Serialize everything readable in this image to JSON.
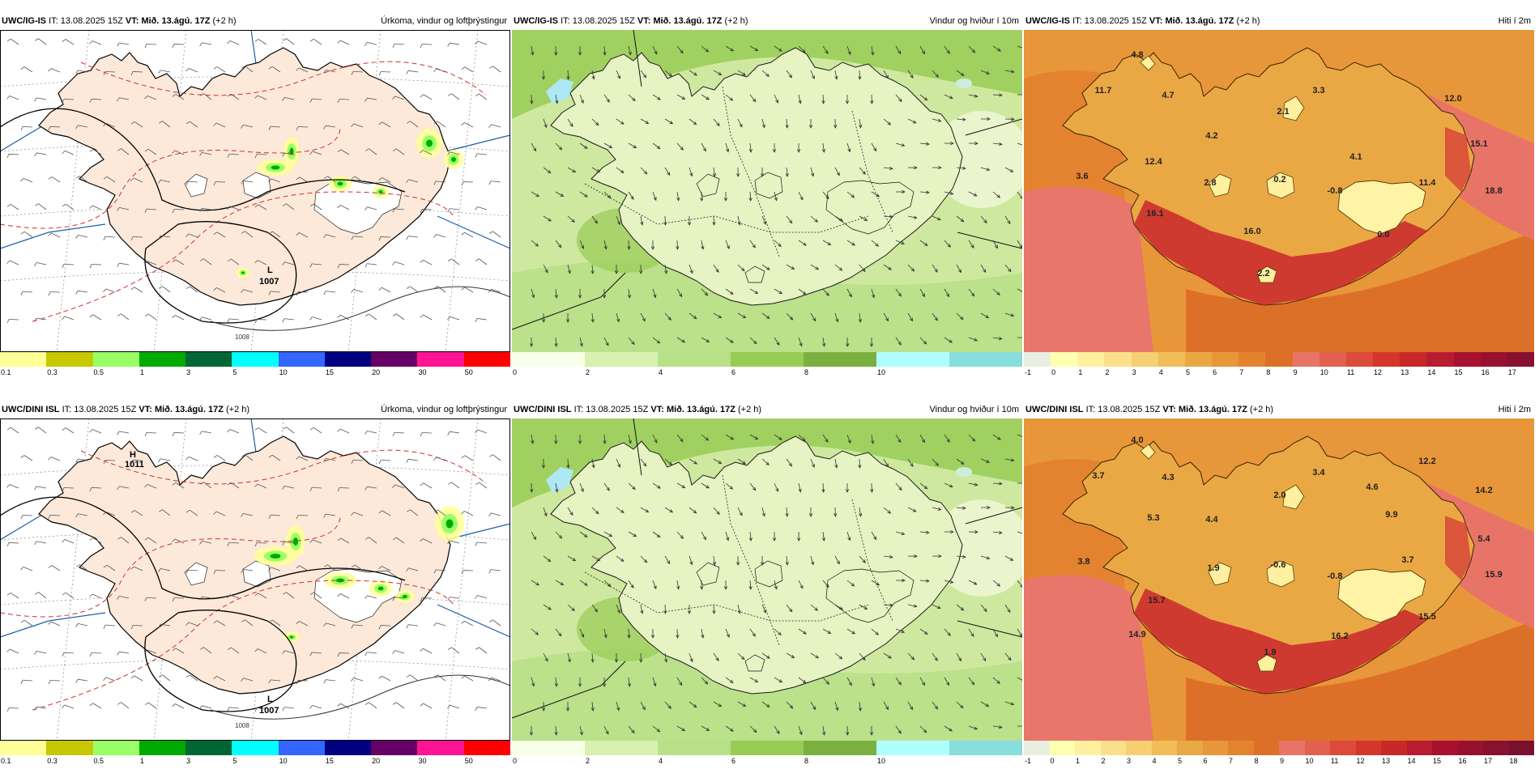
{
  "rows": [
    {
      "panels": [
        {
          "type": "precip",
          "model": "UWC/IG-IS",
          "it_label": "IT:",
          "it": "13.08.2025 15Z",
          "vt_label": "VT:",
          "vt": "Mið. 13.ágú. 17Z",
          "lead": "(+2 h)",
          "title": "Úrkoma, vindur og loftþrýstingur",
          "pressure_low": "L",
          "pressure_low_value": "1007",
          "isobar_label": "1008",
          "colorbar": {
            "colors": [
              "#ffff99",
              "#c8c800",
              "#99ff66",
              "#00aa00",
              "#006633",
              "#00ffff",
              "#3366ff",
              "#000080",
              "#660066",
              "#ff1493",
              "#ff0000"
            ],
            "ticks": [
              "0.1",
              "0.3",
              "0.5",
              "1",
              "3",
              "5",
              "10",
              "15",
              "20",
              "30",
              "50"
            ]
          }
        },
        {
          "type": "wind",
          "model": "UWC/IG-IS",
          "it_label": "IT:",
          "it": "13.08.2025 15Z",
          "vt_label": "VT:",
          "vt": "Mið. 13.ágú. 17Z",
          "lead": "(+2 h)",
          "title": "Vindur og hviður í 10m",
          "colorbar": {
            "colors": [
              "#f8ffe8",
              "#d8f0b0",
              "#b8e088",
              "#98cc55",
              "#7ab040",
              "#b0ffff",
              "#88dddd"
            ],
            "ticks": [
              "0",
              "2",
              "4",
              "6",
              "8",
              "10"
            ]
          }
        },
        {
          "type": "temp",
          "model": "UWC/IG-IS",
          "it_label": "IT:",
          "it": "13.08.2025 15Z",
          "vt_label": "VT:",
          "vt": "Mið. 13.ágú. 17Z",
          "lead": "(+2 h)",
          "title": "Hiti í 2m",
          "labels": [
            {
              "t": "4.8",
              "x": 140,
              "y": 34
            },
            {
              "t": "11.7",
              "x": 98,
              "y": 78
            },
            {
              "t": "4.7",
              "x": 178,
              "y": 84
            },
            {
              "t": "3.3",
              "x": 364,
              "y": 78
            },
            {
              "t": "2.1",
              "x": 320,
              "y": 104
            },
            {
              "t": "12.0",
              "x": 530,
              "y": 88
            },
            {
              "t": "4.2",
              "x": 232,
              "y": 134
            },
            {
              "t": "15.1",
              "x": 562,
              "y": 144
            },
            {
              "t": "12.4",
              "x": 160,
              "y": 166
            },
            {
              "t": "4.1",
              "x": 410,
              "y": 160
            },
            {
              "t": "3.6",
              "x": 72,
              "y": 184
            },
            {
              "t": "2.8",
              "x": 230,
              "y": 192
            },
            {
              "t": "0.2",
              "x": 316,
              "y": 188
            },
            {
              "t": "11.4",
              "x": 498,
              "y": 192
            },
            {
              "t": "-0.8",
              "x": 384,
              "y": 202
            },
            {
              "t": "18.8",
              "x": 580,
              "y": 202
            },
            {
              "t": "16.1",
              "x": 162,
              "y": 230
            },
            {
              "t": "16.0",
              "x": 282,
              "y": 252
            },
            {
              "t": "0.0",
              "x": 444,
              "y": 256
            },
            {
              "t": "2.2",
              "x": 296,
              "y": 304
            }
          ],
          "colorbar": {
            "colors": [
              "#e8efe0",
              "#ffffb0",
              "#fff0a0",
              "#fae08a",
              "#f5cf70",
              "#f0bd58",
              "#eaa845",
              "#e8963a",
              "#e38330",
              "#dd7028",
              "#e87468",
              "#e26050",
              "#db4a3a",
              "#d4362c",
              "#c82828",
              "#b81c30",
              "#a81030",
              "#981030",
              "#881030"
            ],
            "ticks": [
              "-1",
              "0",
              "1",
              "2",
              "3",
              "4",
              "5",
              "6",
              "7",
              "8",
              "9",
              "10",
              "11",
              "12",
              "13",
              "14",
              "15",
              "16",
              "17"
            ]
          }
        }
      ]
    },
    {
      "panels": [
        {
          "type": "precip",
          "model": "UWC/DINI ISL",
          "it_label": "IT:",
          "it": "13.08.2025 15Z",
          "vt_label": "VT:",
          "vt": "Mið. 13.ágú. 17Z",
          "lead": "(+2 h)",
          "title": "Úrkoma, vindur og loftþrýstingur",
          "pressure_low": "L",
          "pressure_low_value": "1007",
          "pressure_high": "H",
          "pressure_high_value": "1011",
          "isobar_label": "1008",
          "colorbar": {
            "colors": [
              "#ffff99",
              "#c8c800",
              "#99ff66",
              "#00aa00",
              "#006633",
              "#00ffff",
              "#3366ff",
              "#000080",
              "#660066",
              "#ff1493",
              "#ff0000"
            ],
            "ticks": [
              "0.1",
              "0.3",
              "0.5",
              "1",
              "3",
              "5",
              "10",
              "15",
              "20",
              "30",
              "50"
            ]
          }
        },
        {
          "type": "wind",
          "model": "UWC/DINI ISL",
          "it_label": "IT:",
          "it": "13.08.2025 15Z",
          "vt_label": "VT:",
          "vt": "Mið. 13.ágú. 17Z",
          "lead": "(+2 h)",
          "title": "Vindur og hviður í 10m",
          "colorbar": {
            "colors": [
              "#f8ffe8",
              "#d8f0b0",
              "#b8e088",
              "#98cc55",
              "#7ab040",
              "#b0ffff",
              "#88dddd"
            ],
            "ticks": [
              "0",
              "2",
              "4",
              "6",
              "8",
              "10"
            ]
          }
        },
        {
          "type": "temp",
          "model": "UWC/DINI ISL",
          "it_label": "IT:",
          "it": "13.08.2025 15Z",
          "vt_label": "VT:",
          "vt": "Mið. 13.ágú. 17Z",
          "lead": "(+2 h)",
          "title": "Hiti í 2m",
          "labels": [
            {
              "t": "4.0",
              "x": 140,
              "y": 30
            },
            {
              "t": "3.7",
              "x": 92,
              "y": 74
            },
            {
              "t": "4.3",
              "x": 178,
              "y": 76
            },
            {
              "t": "3.4",
              "x": 364,
              "y": 70
            },
            {
              "t": "2.0",
              "x": 316,
              "y": 98
            },
            {
              "t": "12.2",
              "x": 498,
              "y": 56
            },
            {
              "t": "4.6",
              "x": 430,
              "y": 88
            },
            {
              "t": "14.2",
              "x": 568,
              "y": 92
            },
            {
              "t": "5.3",
              "x": 160,
              "y": 126
            },
            {
              "t": "4.4",
              "x": 232,
              "y": 128
            },
            {
              "t": "9.9",
              "x": 454,
              "y": 122
            },
            {
              "t": "5.4",
              "x": 568,
              "y": 152
            },
            {
              "t": "3.8",
              "x": 74,
              "y": 180
            },
            {
              "t": "1.9",
              "x": 234,
              "y": 188
            },
            {
              "t": "-0.6",
              "x": 314,
              "y": 184
            },
            {
              "t": "3.7",
              "x": 474,
              "y": 178
            },
            {
              "t": "-0.8",
              "x": 384,
              "y": 198
            },
            {
              "t": "15.9",
              "x": 580,
              "y": 196
            },
            {
              "t": "15.7",
              "x": 164,
              "y": 228
            },
            {
              "t": "15.5",
              "x": 498,
              "y": 248
            },
            {
              "t": "14.9",
              "x": 140,
              "y": 270
            },
            {
              "t": "16.2",
              "x": 390,
              "y": 272
            },
            {
              "t": "1.9",
              "x": 304,
              "y": 292
            }
          ],
          "colorbar": {
            "colors": [
              "#e8efe0",
              "#ffffb0",
              "#fff0a0",
              "#fae08a",
              "#f5cf70",
              "#f0bd58",
              "#eaa845",
              "#e8963a",
              "#e38330",
              "#dd7028",
              "#e87468",
              "#e26050",
              "#db4a3a",
              "#d4362c",
              "#c82828",
              "#b81c30",
              "#a81030",
              "#981030",
              "#881030",
              "#781030"
            ],
            "ticks": [
              "-1",
              "0",
              "1",
              "2",
              "3",
              "4",
              "5",
              "6",
              "7",
              "8",
              "9",
              "10",
              "11",
              "12",
              "13",
              "14",
              "15",
              "16",
              "17",
              "18"
            ]
          }
        }
      ]
    }
  ]
}
